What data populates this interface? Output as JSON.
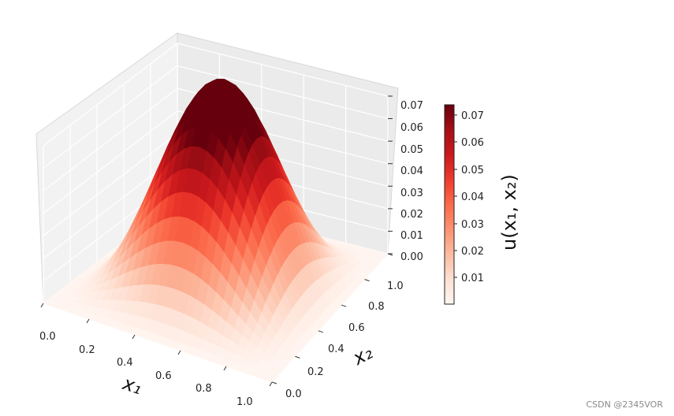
{
  "chart_data": {
    "type": "surface3d",
    "function": "x1*x2*(1-x1)*(1-x2)*sin(pi*x1)*sin(pi*x2)",
    "colormap": "Reds",
    "x1_ticks": [
      "0.0",
      "0.2",
      "0.4",
      "0.6",
      "0.8",
      "1.0"
    ],
    "x2_ticks": [
      "0.0",
      "0.2",
      "0.4",
      "0.6",
      "0.8",
      "1.0"
    ],
    "z_ticks": [
      "0.00",
      "0.01",
      "0.02",
      "0.03",
      "0.04",
      "0.05",
      "0.06",
      "0.07"
    ],
    "colorbar_ticks": [
      "0.01",
      "0.02",
      "0.03",
      "0.04",
      "0.05",
      "0.06",
      "0.07"
    ],
    "colorbar_range": [
      0.0,
      0.0725
    ],
    "x1_label": "x₁",
    "x2_label": "x₂",
    "colorbar_label": "u(x₁, x₂)",
    "xlim": [
      0,
      1
    ],
    "ylim": [
      0,
      1
    ],
    "zlim": [
      0,
      0.07
    ],
    "grid": true
  },
  "watermark": "CSDN @2345VOR"
}
